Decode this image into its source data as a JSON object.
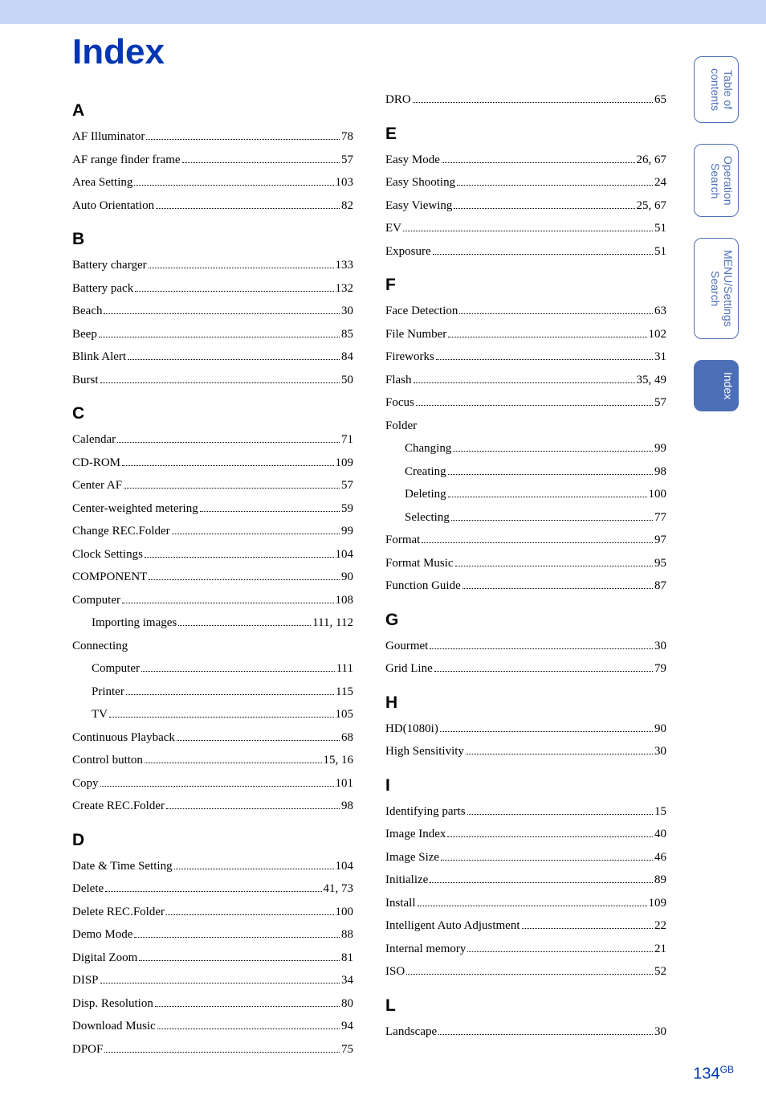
{
  "title": "Index",
  "page_number": "134",
  "page_suffix": "GB",
  "tabs": [
    {
      "label": "Table of\ncontents",
      "active": false
    },
    {
      "label": "Operation\nSearch",
      "active": false
    },
    {
      "label": "MENU/Settings\nSearch",
      "active": false
    },
    {
      "label": "Index",
      "active": true
    }
  ],
  "left": [
    {
      "type": "letter",
      "text": "A"
    },
    {
      "type": "entry",
      "label": "AF Illuminator",
      "page": "78"
    },
    {
      "type": "entry",
      "label": "AF range finder frame",
      "page": "57"
    },
    {
      "type": "entry",
      "label": "Area Setting",
      "page": "103"
    },
    {
      "type": "entry",
      "label": "Auto Orientation",
      "page": "82"
    },
    {
      "type": "letter",
      "text": "B"
    },
    {
      "type": "entry",
      "label": "Battery charger",
      "page": "133"
    },
    {
      "type": "entry",
      "label": "Battery pack",
      "page": "132"
    },
    {
      "type": "entry",
      "label": "Beach",
      "page": "30"
    },
    {
      "type": "entry",
      "label": "Beep",
      "page": "85"
    },
    {
      "type": "entry",
      "label": "Blink Alert",
      "page": "84"
    },
    {
      "type": "entry",
      "label": "Burst",
      "page": "50"
    },
    {
      "type": "letter",
      "text": "C"
    },
    {
      "type": "entry",
      "label": "Calendar",
      "page": "71"
    },
    {
      "type": "entry",
      "label": "CD-ROM",
      "page": "109"
    },
    {
      "type": "entry",
      "label": "Center AF",
      "page": "57"
    },
    {
      "type": "entry",
      "label": "Center-weighted metering",
      "page": "59"
    },
    {
      "type": "entry",
      "label": "Change REC.Folder",
      "page": "99"
    },
    {
      "type": "entry",
      "label": "Clock Settings",
      "page": "104"
    },
    {
      "type": "entry",
      "label": "COMPONENT",
      "page": "90"
    },
    {
      "type": "entry",
      "label": "Computer",
      "page": "108"
    },
    {
      "type": "entry",
      "label": "Importing images",
      "page": "111, 112",
      "indent": true
    },
    {
      "type": "subhead",
      "text": "Connecting"
    },
    {
      "type": "entry",
      "label": "Computer",
      "page": "111",
      "indent": true
    },
    {
      "type": "entry",
      "label": "Printer",
      "page": "115",
      "indent": true
    },
    {
      "type": "entry",
      "label": "TV",
      "page": "105",
      "indent": true
    },
    {
      "type": "entry",
      "label": "Continuous Playback",
      "page": "68"
    },
    {
      "type": "entry",
      "label": "Control button",
      "page": "15, 16"
    },
    {
      "type": "entry",
      "label": "Copy",
      "page": "101"
    },
    {
      "type": "entry",
      "label": "Create REC.Folder",
      "page": "98"
    },
    {
      "type": "letter",
      "text": "D"
    },
    {
      "type": "entry",
      "label": "Date & Time Setting",
      "page": "104"
    },
    {
      "type": "entry",
      "label": "Delete",
      "page": "41, 73"
    },
    {
      "type": "entry",
      "label": "Delete REC.Folder",
      "page": "100"
    },
    {
      "type": "entry",
      "label": "Demo Mode",
      "page": "88"
    },
    {
      "type": "entry",
      "label": "Digital Zoom",
      "page": "81"
    },
    {
      "type": "entry",
      "label": "DISP",
      "page": "34"
    },
    {
      "type": "entry",
      "label": "Disp. Resolution",
      "page": "80"
    },
    {
      "type": "entry",
      "label": "Download Music",
      "page": "94"
    },
    {
      "type": "entry",
      "label": "DPOF",
      "page": "75"
    }
  ],
  "right": [
    {
      "type": "entry",
      "label": "DRO",
      "page": "65"
    },
    {
      "type": "letter",
      "text": "E"
    },
    {
      "type": "entry",
      "label": "Easy Mode",
      "page": "26, 67"
    },
    {
      "type": "entry",
      "label": "Easy Shooting",
      "page": "24"
    },
    {
      "type": "entry",
      "label": "Easy Viewing",
      "page": "25, 67"
    },
    {
      "type": "entry",
      "label": "EV",
      "page": "51"
    },
    {
      "type": "entry",
      "label": "Exposure",
      "page": "51"
    },
    {
      "type": "letter",
      "text": "F"
    },
    {
      "type": "entry",
      "label": "Face Detection",
      "page": "63"
    },
    {
      "type": "entry",
      "label": "File Number",
      "page": "102"
    },
    {
      "type": "entry",
      "label": "Fireworks",
      "page": "31"
    },
    {
      "type": "entry",
      "label": "Flash",
      "page": "35, 49"
    },
    {
      "type": "entry",
      "label": "Focus",
      "page": "57"
    },
    {
      "type": "subhead",
      "text": "Folder"
    },
    {
      "type": "entry",
      "label": "Changing",
      "page": "99",
      "indent": true
    },
    {
      "type": "entry",
      "label": "Creating",
      "page": "98",
      "indent": true
    },
    {
      "type": "entry",
      "label": "Deleting",
      "page": "100",
      "indent": true
    },
    {
      "type": "entry",
      "label": "Selecting",
      "page": "77",
      "indent": true
    },
    {
      "type": "entry",
      "label": "Format",
      "page": "97"
    },
    {
      "type": "entry",
      "label": "Format Music",
      "page": "95"
    },
    {
      "type": "entry",
      "label": "Function Guide",
      "page": "87"
    },
    {
      "type": "letter",
      "text": "G"
    },
    {
      "type": "entry",
      "label": "Gourmet",
      "page": "30"
    },
    {
      "type": "entry",
      "label": "Grid Line",
      "page": "79"
    },
    {
      "type": "letter",
      "text": "H"
    },
    {
      "type": "entry",
      "label": "HD(1080i)",
      "page": "90"
    },
    {
      "type": "entry",
      "label": "High Sensitivity",
      "page": "30"
    },
    {
      "type": "letter",
      "text": "I"
    },
    {
      "type": "entry",
      "label": "Identifying parts",
      "page": "15"
    },
    {
      "type": "entry",
      "label": "Image Index",
      "page": "40"
    },
    {
      "type": "entry",
      "label": "Image Size",
      "page": "46"
    },
    {
      "type": "entry",
      "label": "Initialize",
      "page": "89"
    },
    {
      "type": "entry",
      "label": "Install",
      "page": "109"
    },
    {
      "type": "entry",
      "label": "Intelligent Auto Adjustment",
      "page": "22"
    },
    {
      "type": "entry",
      "label": "Internal memory",
      "page": "21"
    },
    {
      "type": "entry",
      "label": "ISO",
      "page": "52"
    },
    {
      "type": "letter",
      "text": "L"
    },
    {
      "type": "entry",
      "label": "Landscape",
      "page": "30"
    }
  ],
  "colors": {
    "title": "#0036b3",
    "top_strip": "#c7d6f7",
    "tab_border": "#4d6fb8",
    "tab_text": "#4d6fb8",
    "tab_active_bg": "#4d6fb8",
    "tab_active_text": "#ffffff",
    "pagenum": "#0036b3"
  }
}
